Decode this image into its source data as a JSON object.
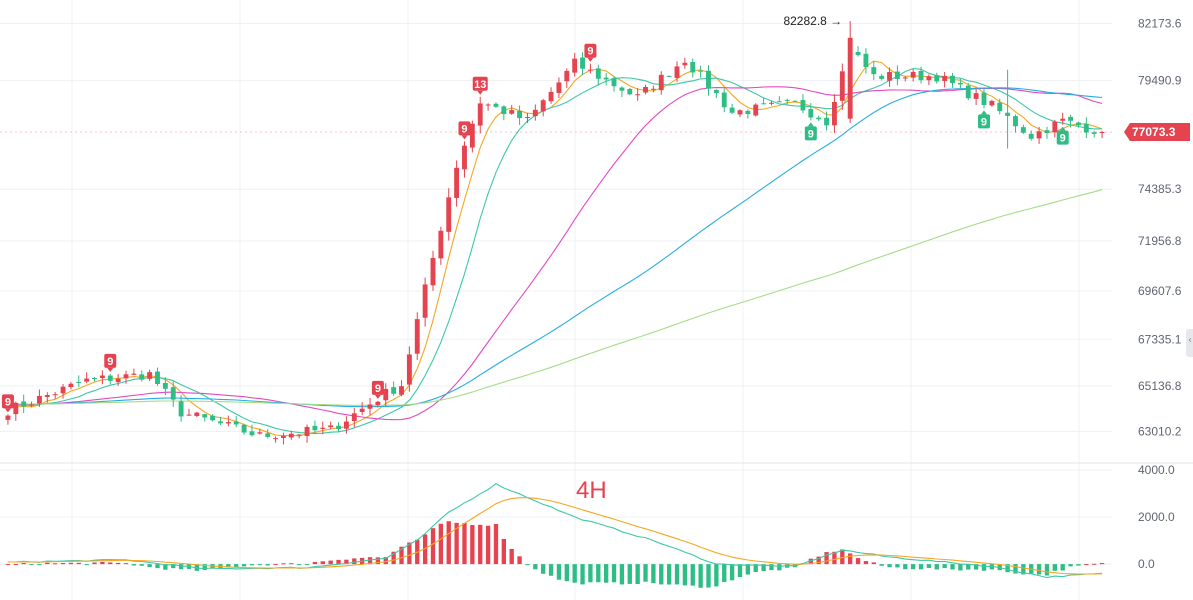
{
  "chart_data": [
    {
      "type": "candlestick",
      "panel": "price",
      "timeframe": "4H",
      "y_ticks": [
        "82173.6",
        "79490.9",
        "74385.3",
        "71956.8",
        "69607.6",
        "67335.1",
        "65136.8",
        "63010.2"
      ],
      "ylim": [
        61900,
        82900
      ],
      "last_price": "77073.3",
      "high_marker": {
        "label": "82282.8",
        "value": 82282.8
      },
      "candle_count": 140,
      "key_points": [
        {
          "i": 0,
          "close": 64000
        },
        {
          "i": 10,
          "close": 65400
        },
        {
          "i": 18,
          "close": 65700
        },
        {
          "i": 22,
          "close": 63900
        },
        {
          "i": 32,
          "close": 62800
        },
        {
          "i": 41,
          "close": 63100
        },
        {
          "i": 48,
          "close": 64800
        },
        {
          "i": 50,
          "close": 65200
        },
        {
          "i": 53,
          "close": 69700
        },
        {
          "i": 57,
          "close": 75500
        },
        {
          "i": 60,
          "close": 78500
        },
        {
          "i": 66,
          "close": 77600
        },
        {
          "i": 72,
          "close": 80300
        },
        {
          "i": 80,
          "close": 78700
        },
        {
          "i": 86,
          "close": 80500
        },
        {
          "i": 92,
          "close": 78000
        },
        {
          "i": 100,
          "close": 78400
        },
        {
          "i": 104,
          "close": 77600
        },
        {
          "i": 107,
          "close": 81000
        },
        {
          "i": 110,
          "close": 79700
        },
        {
          "i": 118,
          "close": 79700
        },
        {
          "i": 125,
          "close": 78300
        },
        {
          "i": 130,
          "close": 76900
        },
        {
          "i": 134,
          "close": 77600
        },
        {
          "i": 139,
          "close": 77073
        }
      ],
      "moving_averages": [
        {
          "period": 5,
          "color": "#f5a623"
        },
        {
          "period": 10,
          "color": "#3ec7a6"
        },
        {
          "period": 30,
          "color": "#e24bc3"
        },
        {
          "period": 60,
          "color": "#27aee0"
        },
        {
          "period": 120,
          "color": "#a6dc84"
        }
      ],
      "td_markers": [
        {
          "i": 0,
          "label": "9",
          "type": "sell"
        },
        {
          "i": 13,
          "label": "9",
          "type": "sell"
        },
        {
          "i": 47,
          "label": "9",
          "type": "sell"
        },
        {
          "i": 58,
          "label": "9",
          "type": "sell"
        },
        {
          "i": 60,
          "label": "13",
          "type": "sell"
        },
        {
          "i": 74,
          "label": "9",
          "type": "sell"
        },
        {
          "i": 102,
          "label": "9",
          "type": "buy"
        },
        {
          "i": 124,
          "label": "9",
          "type": "buy"
        },
        {
          "i": 134,
          "label": "9",
          "type": "buy"
        }
      ],
      "colors": {
        "up": "#2ebd85",
        "down": "#e4434f",
        "grid": "#eef0f3"
      }
    },
    {
      "type": "macd",
      "panel": "indicator",
      "y_ticks": [
        "4000.0",
        "2000.0",
        "0.0"
      ],
      "ylim": [
        -1100,
        4000
      ],
      "key_points": [
        {
          "i": 0,
          "dif": 80
        },
        {
          "i": 15,
          "dif": 180
        },
        {
          "i": 25,
          "dif": -200
        },
        {
          "i": 38,
          "dif": -150
        },
        {
          "i": 48,
          "dif": 250
        },
        {
          "i": 52,
          "dif": 1000
        },
        {
          "i": 56,
          "dif": 2200
        },
        {
          "i": 62,
          "dif": 3400
        },
        {
          "i": 72,
          "dif": 2000
        },
        {
          "i": 82,
          "dif": 1000
        },
        {
          "i": 90,
          "dif": 0
        },
        {
          "i": 100,
          "dif": -100
        },
        {
          "i": 106,
          "dif": 600
        },
        {
          "i": 112,
          "dif": 300
        },
        {
          "i": 125,
          "dif": -100
        },
        {
          "i": 132,
          "dif": -550
        },
        {
          "i": 139,
          "dif": -400
        }
      ],
      "colors": {
        "dif": "#3ec7a6",
        "dea": "#f5a623"
      }
    }
  ],
  "period_label": "4H",
  "scroll_handle_icon": "chevron-left-icon"
}
